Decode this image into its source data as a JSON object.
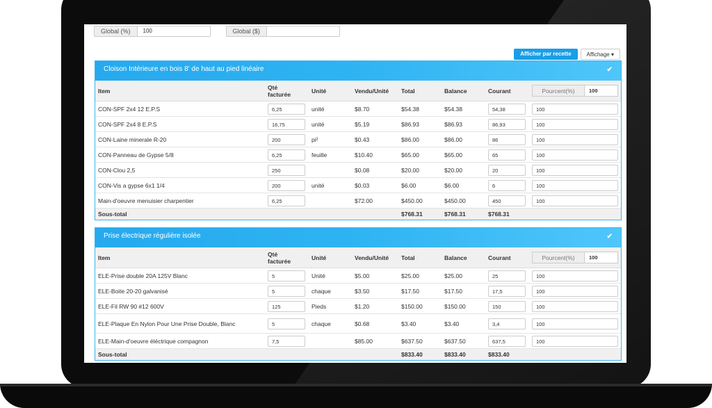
{
  "global": {
    "pct_label": "Global (%)",
    "pct_value": "100",
    "dollar_label": "Global ($)",
    "dollar_value": ""
  },
  "toolbar": {
    "recipe_button": "Afficher par recette",
    "display_button": "Affichage ▾"
  },
  "columns": {
    "item": "Item",
    "qty_line1": "Qté",
    "qty_line2": "facturée",
    "unit": "Unité",
    "vendu": "Vendu/Unité",
    "total": "Total",
    "balance": "Balance",
    "courant": "Courant",
    "pourcent_label": "Pourcent(%)"
  },
  "sections": [
    {
      "title": "Cloison Intérieure en bois 8' de haut au pied linéaire",
      "check": "✔",
      "pourcent_value": "100",
      "rows": [
        {
          "item": "CON-SPF 2x4 12 E.P.S",
          "qty": "6,25",
          "unit": "unité",
          "vendu": "$8.70",
          "total": "$54.38",
          "balance": "$54.38",
          "courant": "54,38",
          "pct": "100"
        },
        {
          "item": "CON-SPF 2x4 8 E.P.S",
          "qty": "16,75",
          "unit": "unité",
          "vendu": "$5.19",
          "total": "$86.93",
          "balance": "$86.93",
          "courant": "86,93",
          "pct": "100"
        },
        {
          "item": "CON-Laine minerale R-20",
          "qty": "200",
          "unit": "pi²",
          "vendu": "$0.43",
          "total": "$86.00",
          "balance": "$86.00",
          "courant": "86",
          "pct": "100"
        },
        {
          "item": "CON-Panneau de Gypse 5/8",
          "qty": "6,25",
          "unit": "feuille",
          "vendu": "$10.40",
          "total": "$65.00",
          "balance": "$65.00",
          "courant": "65",
          "pct": "100"
        },
        {
          "item": "CON-Clou 2,5",
          "qty": "250",
          "unit": "",
          "vendu": "$0.08",
          "total": "$20.00",
          "balance": "$20.00",
          "courant": "20",
          "pct": "100"
        },
        {
          "item": "CON-Vis a gypse 6x1 1/4",
          "qty": "200",
          "unit": "unité",
          "vendu": "$0.03",
          "total": "$6.00",
          "balance": "$6.00",
          "courant": "6",
          "pct": "100"
        },
        {
          "item": "Main-d'oeuvre menuisier charpentier",
          "qty": "6,25",
          "unit": "",
          "vendu": "$72.00",
          "total": "$450.00",
          "balance": "$450.00",
          "courant": "450",
          "pct": "100"
        }
      ],
      "subtotal": {
        "label": "Sous-total",
        "total": "$768.31",
        "balance": "$768.31",
        "courant": "$768.31"
      }
    },
    {
      "title": "Prise électrique régulière isolée",
      "check": "✔",
      "pourcent_value": "100",
      "rows": [
        {
          "item": "ELE-Prise double 20A 125V Blanc",
          "qty": "5",
          "unit": "Unité",
          "vendu": "$5.00",
          "total": "$25.00",
          "balance": "$25.00",
          "courant": "25",
          "pct": "100"
        },
        {
          "item": "ELE-Boite 20-20 galvanisé",
          "qty": "5",
          "unit": "chaque",
          "vendu": "$3.50",
          "total": "$17.50",
          "balance": "$17.50",
          "courant": "17,5",
          "pct": "100"
        },
        {
          "item": "ELE-Fil RW 90 #12 600V",
          "qty": "125",
          "unit": "Pieds",
          "vendu": "$1.20",
          "total": "$150.00",
          "balance": "$150.00",
          "courant": "150",
          "pct": "100"
        },
        {
          "item": "ELE-Plaque En Nylon Pour Une Prise Double, Blanc",
          "qty": "5",
          "unit": "chaque",
          "vendu": "$0.68",
          "total": "$3.40",
          "balance": "$3.40",
          "courant": "3,4",
          "pct": "100"
        },
        {
          "item": "ELE-Main-d'oeuvre éléctrique compagnon",
          "qty": "7,5",
          "unit": "",
          "vendu": "$85.00",
          "total": "$637.50",
          "balance": "$637.50",
          "courant": "637,5",
          "pct": "100"
        }
      ],
      "subtotal": {
        "label": "Sous-total",
        "total": "$833.40",
        "balance": "$833.40",
        "courant": "$833.40"
      }
    }
  ]
}
